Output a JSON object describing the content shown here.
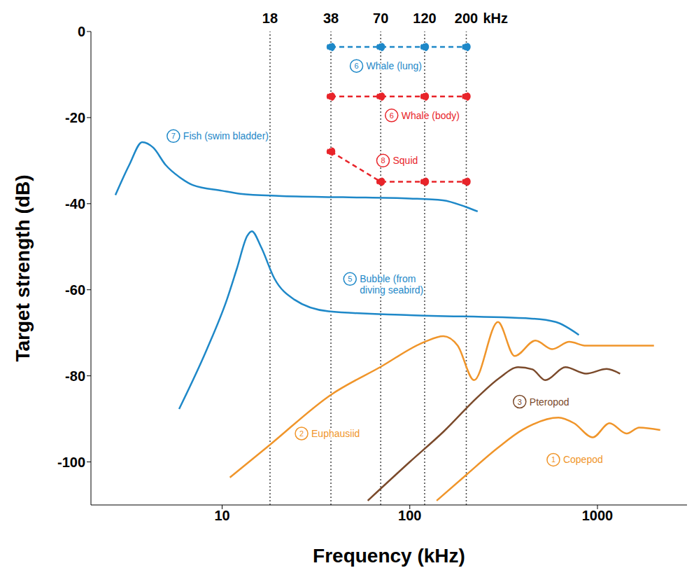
{
  "chart_data": {
    "type": "line",
    "x_label": "Frequency (kHz)",
    "y_label": "Target strength (dB)",
    "log": "x",
    "xlim": [
      2,
      3000
    ],
    "xticks": [
      10,
      100,
      1000
    ],
    "ylim": [
      -110,
      0
    ],
    "yticks": [
      -100,
      -80,
      -60,
      -40,
      -20,
      0
    ],
    "grid": false,
    "reference_lines": [
      18,
      38,
      70,
      120,
      200
    ],
    "reference_unit": "kHz",
    "series": [
      {
        "name": "Whale (lung)",
        "number": 6,
        "color": "#1e88c8",
        "marker": "circle",
        "line_style": "dashed",
        "x": [
          38,
          70,
          120,
          200
        ],
        "values": [
          -3.6,
          -3.6,
          -3.6,
          -3.6
        ]
      },
      {
        "name": "Whale (body)",
        "number": 6,
        "color": "#e8242a",
        "marker": "circle",
        "line_style": "dashed",
        "x": [
          38,
          70,
          120,
          200
        ],
        "values": [
          -15.1,
          -15.1,
          -15.1,
          -15.1
        ]
      },
      {
        "name": "Squid",
        "number": 8,
        "color": "#e8242a",
        "marker": "circle",
        "line_style": "dashed",
        "x": [
          38,
          70,
          120,
          200
        ],
        "values": [
          -27.9,
          -34.9,
          -34.9,
          -34.9
        ]
      },
      {
        "name": "Fish (swim bladder)",
        "number": 7,
        "color": "#1e88c8",
        "marker": "none",
        "line_style": "solid",
        "x": [
          2.7,
          3.2,
          3.75,
          4.3,
          5,
          6,
          7,
          10,
          12.5,
          20,
          44,
          100,
          150,
          200,
          230
        ],
        "values": [
          -38,
          -31,
          -25.7,
          -27,
          -31,
          -34,
          -35.7,
          -37,
          -37.7,
          -38.2,
          -38.5,
          -38.8,
          -39.2,
          -40.8,
          -41.8
        ]
      },
      {
        "name": "Bubble (from diving seabird)",
        "number": 5,
        "color": "#1e88c8",
        "marker": "none",
        "line_style": "solid",
        "x": [
          5.9,
          8.3,
          10.6,
          12,
          13.6,
          14.4,
          16.1,
          19,
          24.3,
          36.9,
          100,
          446,
          600,
          796
        ],
        "values": [
          -87.7,
          -73.8,
          -62.3,
          -55,
          -47.5,
          -46.4,
          -50,
          -57.4,
          -62.3,
          -65,
          -65.9,
          -66.7,
          -67.5,
          -70.5
        ]
      },
      {
        "name": "Euphausiid",
        "number": 2,
        "color": "#f0952a",
        "marker": "none",
        "line_style": "solid",
        "x": [
          11,
          18,
          38,
          70,
          120,
          151,
          180,
          220,
          295,
          362,
          467,
          575,
          708,
          870,
          1620,
          2000
        ],
        "values": [
          -103.6,
          -96,
          -84.4,
          -77.9,
          -72.1,
          -70.8,
          -73,
          -81,
          -67.5,
          -75.4,
          -71.8,
          -73.8,
          -72.1,
          -73,
          -73,
          -73
        ]
      },
      {
        "name": "Pteropod",
        "number": 3,
        "color": "#7b4a2b",
        "marker": "none",
        "line_style": "solid",
        "x": [
          59.7,
          100,
          151,
          229,
          300,
          378,
          450,
          527,
          675,
          870,
          1120,
          1320
        ],
        "values": [
          -109,
          -100,
          -93,
          -85,
          -80.5,
          -78,
          -78.5,
          -81,
          -78,
          -79.5,
          -78.4,
          -79.5
        ]
      },
      {
        "name": "Copepod",
        "number": 1,
        "color": "#f0952a",
        "marker": "none",
        "line_style": "solid",
        "x": [
          139,
          200,
          295,
          400,
          620,
          750,
          943,
          1160,
          1430,
          1670,
          2160
        ],
        "values": [
          -109,
          -103,
          -96.7,
          -92.5,
          -89.7,
          -91,
          -94.3,
          -91,
          -93.4,
          -92,
          -92.6
        ]
      }
    ]
  }
}
